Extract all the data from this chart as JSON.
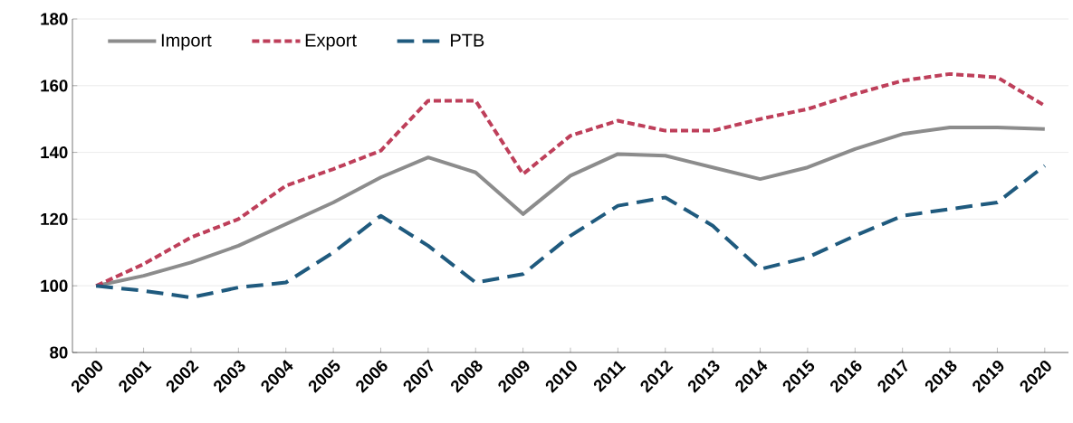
{
  "chart_data": {
    "type": "line",
    "categories": [
      "2000",
      "2001",
      "2002",
      "2003",
      "2004",
      "2005",
      "2006",
      "2007",
      "2008",
      "2009",
      "2010",
      "2011",
      "2012",
      "2013",
      "2014",
      "2015",
      "2016",
      "2017",
      "2018",
      "2019",
      "2020"
    ],
    "series": [
      {
        "name": "Import",
        "color": "#8c8c8c",
        "line_style": "solid",
        "values": [
          100,
          103,
          107,
          112,
          118.5,
          125,
          132.5,
          138.5,
          134,
          121.5,
          133,
          139.5,
          139,
          135.5,
          132,
          135.5,
          141,
          145.5,
          147.5,
          147.5,
          147
        ]
      },
      {
        "name": "Export",
        "color": "#be3f5a",
        "line_style": "dotted",
        "values": [
          100,
          106.5,
          114.5,
          120,
          130,
          135,
          140.5,
          155.5,
          155.5,
          133.5,
          145,
          149.5,
          146.5,
          146.5,
          150,
          153,
          157.5,
          161.5,
          163.5,
          162.5,
          154
        ]
      },
      {
        "name": "PTB",
        "color": "#1f5a7e",
        "line_style": "dashed",
        "values": [
          100,
          98.5,
          96.5,
          99.5,
          101,
          110,
          121,
          112,
          101,
          103.5,
          115,
          124,
          126.5,
          118,
          105,
          108.5,
          115,
          121,
          123,
          125,
          136
        ]
      }
    ],
    "ylim": [
      80,
      180
    ],
    "yticks": [
      80,
      100,
      120,
      140,
      160,
      180
    ],
    "grid": "y",
    "legend": "top left",
    "marker": "none"
  }
}
